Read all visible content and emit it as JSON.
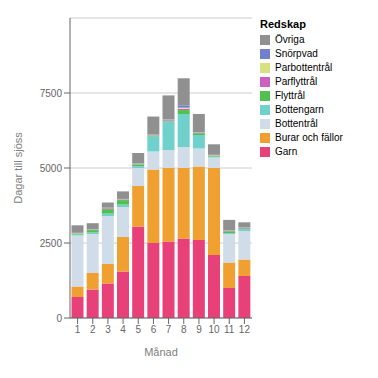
{
  "chart_data": {
    "type": "bar",
    "stacked": true,
    "xlabel": "Månad",
    "ylabel": "Dagar till sjöss",
    "legend_title": "Redskap",
    "legend": "upper right",
    "grid": true,
    "categories": [
      1,
      2,
      3,
      4,
      5,
      6,
      7,
      8,
      9,
      10,
      11,
      12
    ],
    "series": [
      {
        "name": "Garn",
        "color": "#E8417A",
        "values": [
          700,
          950,
          1150,
          1550,
          3050,
          2500,
          2550,
          2650,
          2600,
          2100,
          1000,
          1400
        ]
      },
      {
        "name": "Burar och fällor",
        "color": "#F0A030",
        "values": [
          350,
          550,
          650,
          1150,
          1350,
          2450,
          2450,
          2350,
          2450,
          2900,
          850,
          550
        ]
      },
      {
        "name": "Bottentrål",
        "color": "#D0DCE8",
        "values": [
          1700,
          1300,
          1600,
          1000,
          600,
          600,
          600,
          700,
          600,
          350,
          950,
          950
        ]
      },
      {
        "name": "Bottengarn",
        "color": "#70D0CC",
        "values": [
          30,
          50,
          80,
          80,
          60,
          500,
          950,
          1100,
          450,
          30,
          30,
          60
        ]
      },
      {
        "name": "Flyttrål",
        "color": "#50C050",
        "values": [
          30,
          80,
          150,
          150,
          60,
          30,
          30,
          130,
          60,
          30,
          60,
          30
        ]
      },
      {
        "name": "Parflyttrål",
        "color": "#CC60C0",
        "values": [
          10,
          10,
          30,
          20,
          10,
          15,
          20,
          40,
          20,
          10,
          10,
          10
        ]
      },
      {
        "name": "Parbottentrål",
        "color": "#D8E080",
        "values": [
          10,
          10,
          10,
          10,
          10,
          10,
          10,
          40,
          10,
          10,
          10,
          10
        ]
      },
      {
        "name": "Snörpvad",
        "color": "#7080CC",
        "values": [
          10,
          10,
          10,
          10,
          10,
          10,
          10,
          80,
          10,
          10,
          10,
          10
        ]
      },
      {
        "name": "Övriga",
        "color": "#909090",
        "values": [
          250,
          200,
          170,
          250,
          350,
          600,
          800,
          900,
          600,
          350,
          350,
          170
        ]
      }
    ],
    "ylim": [
      0,
      10000
    ],
    "yticks": [
      0,
      2500,
      5000,
      7500
    ]
  }
}
